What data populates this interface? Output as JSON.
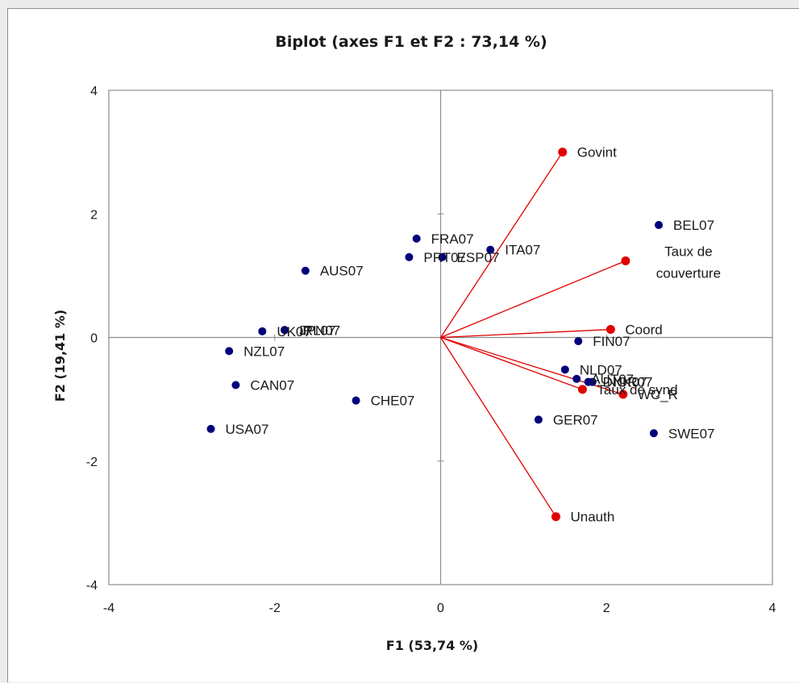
{
  "chart_data": {
    "type": "scatter",
    "title": "Biplot (axes F1 et F2 : 73,14 %)",
    "xlabel": "F1 (53,74 %)",
    "ylabel": "F2 (19,41 %)",
    "xlim": [
      -4,
      4
    ],
    "ylim": [
      -4,
      4
    ],
    "xticks": [
      -4,
      -2,
      0,
      2,
      4
    ],
    "yticks": [
      -4,
      -2,
      0,
      2,
      4
    ],
    "grid": false,
    "observations": {
      "color": "#00007a",
      "points": [
        {
          "label": "BEL07",
          "x": 2.63,
          "y": 1.82
        },
        {
          "label": "FRA07",
          "x": -0.29,
          "y": 1.6
        },
        {
          "label": "ITA07",
          "x": 0.6,
          "y": 1.42
        },
        {
          "label": "PRT07",
          "x": -0.38,
          "y": 1.3
        },
        {
          "label": "ESP07",
          "x": 0.02,
          "y": 1.3
        },
        {
          "label": "AUS07",
          "x": -1.63,
          "y": 1.08
        },
        {
          "label": "UK07",
          "x": -2.15,
          "y": 0.1
        },
        {
          "label": "IRL07",
          "x": -1.88,
          "y": 0.12
        },
        {
          "label": "JPN07",
          "x": -1.88,
          "y": 0.12
        },
        {
          "label": "FIN07",
          "x": 1.66,
          "y": -0.06
        },
        {
          "label": "NZL07",
          "x": -2.55,
          "y": -0.22
        },
        {
          "label": "NLD07",
          "x": 1.5,
          "y": -0.52
        },
        {
          "label": "AUT07",
          "x": 1.64,
          "y": -0.67
        },
        {
          "label": "DNK07",
          "x": 1.78,
          "y": -0.72
        },
        {
          "label": "NOR07",
          "x": 1.83,
          "y": -0.72
        },
        {
          "label": "CAN07",
          "x": -2.47,
          "y": -0.77
        },
        {
          "label": "CHE07",
          "x": -1.02,
          "y": -1.02
        },
        {
          "label": "GER07",
          "x": 1.18,
          "y": -1.33
        },
        {
          "label": "USA07",
          "x": -2.77,
          "y": -1.48
        },
        {
          "label": "SWE07",
          "x": 2.57,
          "y": -1.55
        }
      ]
    },
    "variables": {
      "color": "#e00000",
      "points": [
        {
          "label": "Govint",
          "x": 1.47,
          "y": 3.0
        },
        {
          "label": "Taux de couverture",
          "x": 2.23,
          "y": 1.24
        },
        {
          "label": "Coord",
          "x": 2.05,
          "y": 0.13
        },
        {
          "label": "Taux de synd",
          "x": 1.71,
          "y": -0.84
        },
        {
          "label": "WC_R",
          "x": 2.2,
          "y": -0.92
        },
        {
          "label": "Unauth",
          "x": 1.39,
          "y": -2.9
        }
      ]
    }
  }
}
